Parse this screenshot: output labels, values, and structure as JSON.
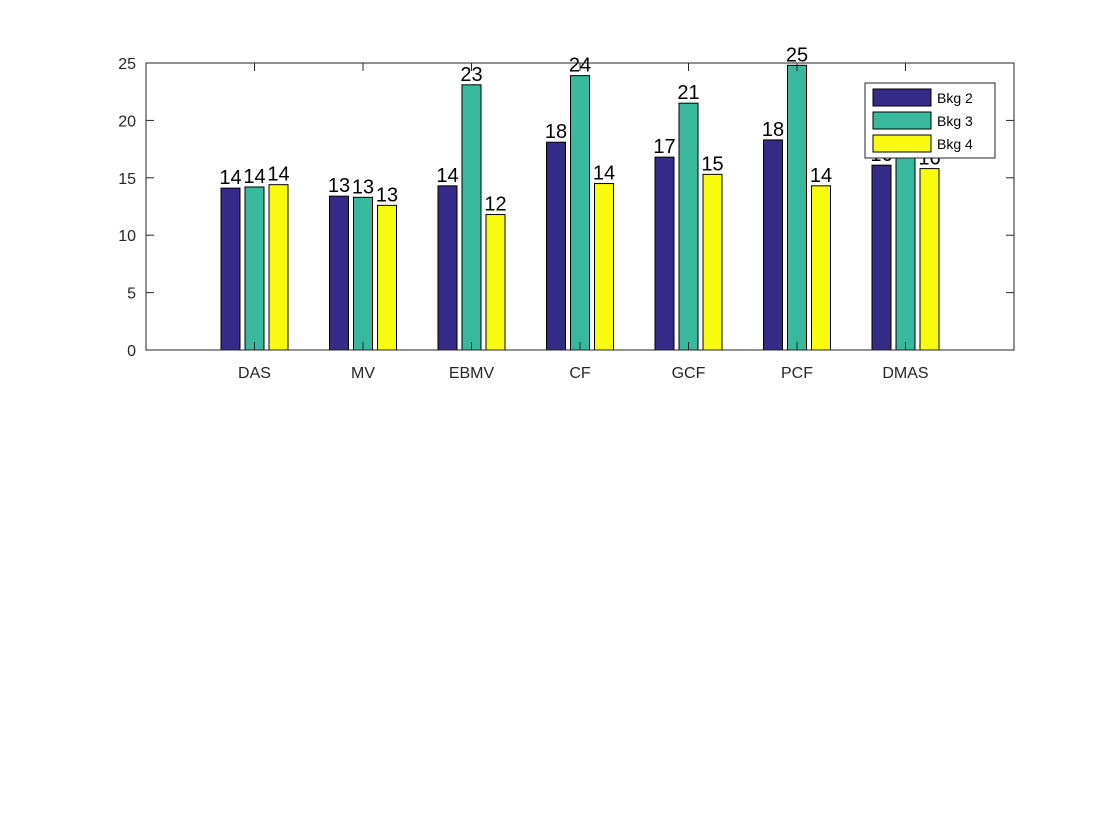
{
  "chart_data": {
    "type": "bar",
    "title": "",
    "xlabel": "",
    "ylabel": "",
    "categories": [
      "DAS",
      "MV",
      "EBMV",
      "CF",
      "GCF",
      "PCF",
      "DMAS"
    ],
    "series": [
      {
        "name": "Bkg 2",
        "color": "#352a87",
        "values": [
          14.1,
          13.4,
          14.3,
          18.1,
          16.8,
          18.3,
          16.1
        ],
        "labels": [
          "14",
          "13",
          "14",
          "18",
          "17",
          "18",
          "16"
        ]
      },
      {
        "name": "Bkg 3",
        "color": "#38b99e",
        "values": [
          14.2,
          13.3,
          23.1,
          23.9,
          21.5,
          24.8,
          17.0
        ],
        "labels": [
          "14",
          "13",
          "23",
          "24",
          "21",
          "25",
          "17"
        ]
      },
      {
        "name": "Bkg 4",
        "color": "#f9fb0e",
        "values": [
          14.4,
          12.6,
          11.8,
          14.5,
          15.3,
          14.3,
          15.8
        ],
        "labels": [
          "14",
          "13",
          "12",
          "14",
          "15",
          "14",
          "16"
        ]
      }
    ],
    "ylim": [
      0,
      25
    ],
    "yticks": [
      0,
      5,
      10,
      15,
      20,
      25
    ],
    "grid": false,
    "legend_position": "top-right"
  }
}
